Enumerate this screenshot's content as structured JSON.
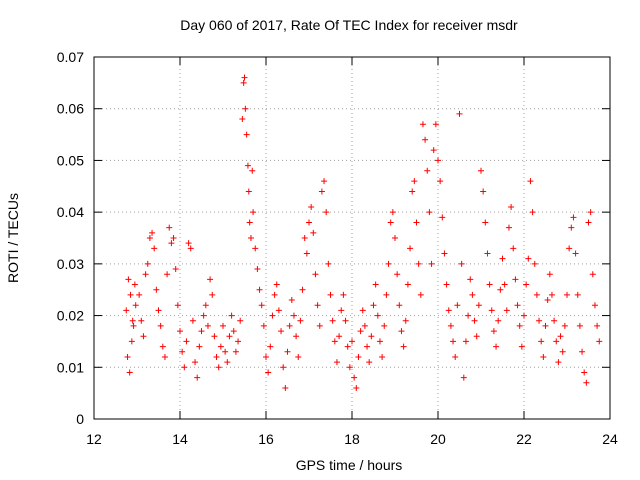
{
  "chart_data": {
    "type": "scatter",
    "title": "Day 060 of 2017, Rate Of TEC Index for receiver msdr",
    "xlabel": "GPS time / hours",
    "ylabel": "ROTI / TECUs",
    "xlim": [
      12,
      24
    ],
    "ylim": [
      0,
      0.07
    ],
    "x_ticks": [
      12,
      14,
      16,
      18,
      20,
      22,
      24
    ],
    "y_ticks": [
      0,
      0.01,
      0.02,
      0.03,
      0.04,
      0.05,
      0.06,
      0.07
    ],
    "x_tick_labels": [
      "12",
      "14",
      "16",
      "18",
      "20",
      "22",
      "24"
    ],
    "y_tick_labels": [
      "0",
      "0.01",
      "0.02",
      "0.03",
      "0.04",
      "0.05",
      "0.06",
      "0.07"
    ],
    "grid": true,
    "marker": "+",
    "marker_color": "#ff0000",
    "series": [
      {
        "name": "ROTI",
        "points": [
          [
            12.75,
            0.021
          ],
          [
            12.8,
            0.027
          ],
          [
            12.85,
            0.024
          ],
          [
            12.9,
            0.019
          ],
          [
            12.95,
            0.026
          ],
          [
            12.78,
            0.012
          ],
          [
            12.83,
            0.009
          ],
          [
            12.88,
            0.015
          ],
          [
            12.92,
            0.018
          ],
          [
            12.97,
            0.022
          ],
          [
            13.05,
            0.024
          ],
          [
            13.1,
            0.019
          ],
          [
            13.15,
            0.016
          ],
          [
            13.2,
            0.028
          ],
          [
            13.25,
            0.03
          ],
          [
            13.3,
            0.035
          ],
          [
            13.35,
            0.036
          ],
          [
            13.4,
            0.033
          ],
          [
            13.45,
            0.025
          ],
          [
            13.5,
            0.021
          ],
          [
            13.55,
            0.018
          ],
          [
            13.6,
            0.014
          ],
          [
            13.65,
            0.012
          ],
          [
            13.7,
            0.028
          ],
          [
            13.75,
            0.037
          ],
          [
            13.8,
            0.034
          ],
          [
            13.85,
            0.035
          ],
          [
            13.9,
            0.029
          ],
          [
            13.95,
            0.022
          ],
          [
            14.0,
            0.017
          ],
          [
            14.05,
            0.013
          ],
          [
            14.1,
            0.01
          ],
          [
            14.15,
            0.015
          ],
          [
            14.2,
            0.034
          ],
          [
            14.25,
            0.033
          ],
          [
            14.3,
            0.019
          ],
          [
            14.35,
            0.011
          ],
          [
            14.4,
            0.008
          ],
          [
            14.45,
            0.014
          ],
          [
            14.5,
            0.017
          ],
          [
            14.55,
            0.02
          ],
          [
            14.6,
            0.022
          ],
          [
            14.65,
            0.018
          ],
          [
            14.7,
            0.027
          ],
          [
            14.75,
            0.024
          ],
          [
            14.8,
            0.016
          ],
          [
            14.85,
            0.012
          ],
          [
            14.9,
            0.01
          ],
          [
            14.95,
            0.014
          ],
          [
            15.0,
            0.018
          ],
          [
            15.05,
            0.013
          ],
          [
            15.1,
            0.011
          ],
          [
            15.15,
            0.016
          ],
          [
            15.2,
            0.02
          ],
          [
            15.25,
            0.017
          ],
          [
            15.3,
            0.013
          ],
          [
            15.35,
            0.015
          ],
          [
            15.4,
            0.019
          ],
          [
            15.45,
            0.058
          ],
          [
            15.48,
            0.065
          ],
          [
            15.5,
            0.066
          ],
          [
            15.52,
            0.06
          ],
          [
            15.55,
            0.055
          ],
          [
            15.58,
            0.049
          ],
          [
            15.6,
            0.044
          ],
          [
            15.62,
            0.038
          ],
          [
            15.65,
            0.035
          ],
          [
            15.68,
            0.048
          ],
          [
            15.7,
            0.04
          ],
          [
            15.75,
            0.033
          ],
          [
            15.8,
            0.029
          ],
          [
            15.85,
            0.025
          ],
          [
            15.9,
            0.022
          ],
          [
            15.95,
            0.018
          ],
          [
            16.0,
            0.012
          ],
          [
            16.05,
            0.009
          ],
          [
            16.1,
            0.014
          ],
          [
            16.15,
            0.02
          ],
          [
            16.2,
            0.024
          ],
          [
            16.25,
            0.026
          ],
          [
            16.3,
            0.021
          ],
          [
            16.35,
            0.017
          ],
          [
            16.4,
            0.01
          ],
          [
            16.45,
            0.006
          ],
          [
            16.5,
            0.013
          ],
          [
            16.55,
            0.018
          ],
          [
            16.6,
            0.023
          ],
          [
            16.65,
            0.02
          ],
          [
            16.7,
            0.016
          ],
          [
            16.75,
            0.012
          ],
          [
            16.8,
            0.019
          ],
          [
            16.85,
            0.025
          ],
          [
            16.9,
            0.035
          ],
          [
            16.95,
            0.032
          ],
          [
            17.0,
            0.038
          ],
          [
            17.05,
            0.041
          ],
          [
            17.1,
            0.036
          ],
          [
            17.15,
            0.028
          ],
          [
            17.2,
            0.022
          ],
          [
            17.25,
            0.018
          ],
          [
            17.3,
            0.044
          ],
          [
            17.35,
            0.046
          ],
          [
            17.4,
            0.04
          ],
          [
            17.45,
            0.03
          ],
          [
            17.5,
            0.024
          ],
          [
            17.55,
            0.019
          ],
          [
            17.6,
            0.015
          ],
          [
            17.65,
            0.011
          ],
          [
            17.7,
            0.016
          ],
          [
            17.75,
            0.021
          ],
          [
            17.8,
            0.024
          ],
          [
            17.85,
            0.019
          ],
          [
            17.9,
            0.014
          ],
          [
            17.95,
            0.01
          ],
          [
            18.0,
            0.015
          ],
          [
            18.05,
            0.008
          ],
          [
            18.1,
            0.006
          ],
          [
            18.15,
            0.012
          ],
          [
            18.2,
            0.017
          ],
          [
            18.25,
            0.021
          ],
          [
            18.3,
            0.018
          ],
          [
            18.35,
            0.014
          ],
          [
            18.4,
            0.011
          ],
          [
            18.45,
            0.016
          ],
          [
            18.5,
            0.022
          ],
          [
            18.55,
            0.026
          ],
          [
            18.6,
            0.02
          ],
          [
            18.65,
            0.015
          ],
          [
            18.7,
            0.012
          ],
          [
            18.75,
            0.018
          ],
          [
            18.8,
            0.024
          ],
          [
            18.85,
            0.03
          ],
          [
            18.9,
            0.038
          ],
          [
            18.95,
            0.04
          ],
          [
            19.0,
            0.035
          ],
          [
            19.05,
            0.028
          ],
          [
            19.1,
            0.022
          ],
          [
            19.15,
            0.017
          ],
          [
            19.2,
            0.014
          ],
          [
            19.25,
            0.019
          ],
          [
            19.3,
            0.026
          ],
          [
            19.35,
            0.033
          ],
          [
            19.4,
            0.044
          ],
          [
            19.45,
            0.046
          ],
          [
            19.5,
            0.038
          ],
          [
            19.55,
            0.03
          ],
          [
            19.6,
            0.024
          ],
          [
            19.65,
            0.057
          ],
          [
            19.7,
            0.054
          ],
          [
            19.75,
            0.048
          ],
          [
            19.8,
            0.04
          ],
          [
            19.85,
            0.03
          ],
          [
            19.9,
            0.052
          ],
          [
            19.95,
            0.057
          ],
          [
            20.0,
            0.05
          ],
          [
            20.05,
            0.046
          ],
          [
            20.1,
            0.039
          ],
          [
            20.15,
            0.032
          ],
          [
            20.2,
            0.026
          ],
          [
            20.25,
            0.021
          ],
          [
            20.3,
            0.018
          ],
          [
            20.35,
            0.015
          ],
          [
            20.4,
            0.012
          ],
          [
            20.45,
            0.022
          ],
          [
            20.5,
            0.059
          ],
          [
            20.55,
            0.03
          ],
          [
            20.6,
            0.008
          ],
          [
            20.65,
            0.015
          ],
          [
            20.7,
            0.02
          ],
          [
            20.75,
            0.027
          ],
          [
            20.8,
            0.024
          ],
          [
            20.85,
            0.019
          ],
          [
            20.9,
            0.016
          ],
          [
            20.95,
            0.022
          ],
          [
            21.0,
            0.048
          ],
          [
            21.05,
            0.044
          ],
          [
            21.1,
            0.038
          ],
          [
            21.15,
            0.032
          ],
          [
            21.2,
            0.026
          ],
          [
            21.25,
            0.021
          ],
          [
            21.3,
            0.017
          ],
          [
            21.35,
            0.014
          ],
          [
            21.4,
            0.019
          ],
          [
            21.45,
            0.025
          ],
          [
            21.5,
            0.031
          ],
          [
            21.55,
            0.026
          ],
          [
            21.6,
            0.021
          ],
          [
            21.65,
            0.037
          ],
          [
            21.7,
            0.041
          ],
          [
            21.75,
            0.033
          ],
          [
            21.8,
            0.027
          ],
          [
            21.85,
            0.022
          ],
          [
            21.9,
            0.018
          ],
          [
            21.95,
            0.014
          ],
          [
            22.0,
            0.02
          ],
          [
            22.05,
            0.026
          ],
          [
            22.1,
            0.031
          ],
          [
            22.15,
            0.046
          ],
          [
            22.2,
            0.04
          ],
          [
            22.25,
            0.03
          ],
          [
            22.3,
            0.024
          ],
          [
            22.35,
            0.019
          ],
          [
            22.4,
            0.015
          ],
          [
            22.45,
            0.012
          ],
          [
            22.5,
            0.018
          ],
          [
            22.55,
            0.023
          ],
          [
            22.6,
            0.028
          ],
          [
            22.65,
            0.024
          ],
          [
            22.7,
            0.019
          ],
          [
            22.75,
            0.015
          ],
          [
            22.8,
            0.011
          ],
          [
            22.85,
            0.016
          ],
          [
            22.9,
            0.013
          ],
          [
            22.95,
            0.018
          ],
          [
            23.0,
            0.024
          ],
          [
            23.05,
            0.033
          ],
          [
            23.1,
            0.037
          ],
          [
            23.15,
            0.039
          ],
          [
            23.2,
            0.032
          ],
          [
            23.25,
            0.024
          ],
          [
            23.3,
            0.018
          ],
          [
            23.35,
            0.013
          ],
          [
            23.4,
            0.009
          ],
          [
            23.45,
            0.007
          ],
          [
            23.5,
            0.038
          ],
          [
            23.55,
            0.04
          ],
          [
            23.6,
            0.028
          ],
          [
            23.65,
            0.022
          ],
          [
            23.7,
            0.018
          ],
          [
            23.75,
            0.015
          ]
        ]
      }
    ]
  }
}
